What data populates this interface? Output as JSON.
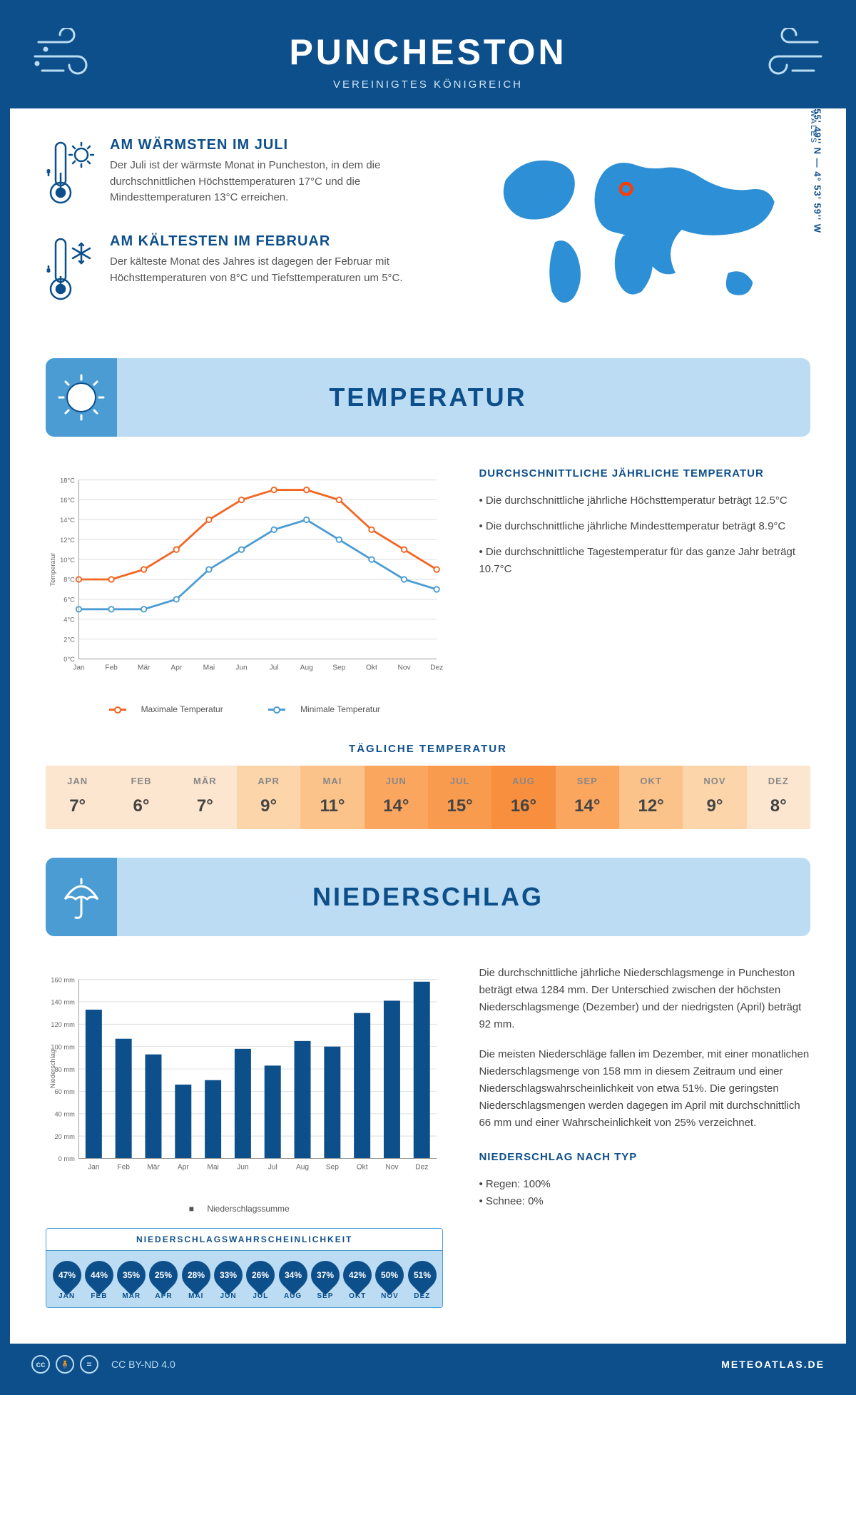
{
  "header": {
    "title": "PUNCHESTON",
    "subtitle": "VEREINIGTES KÖNIGREICH"
  },
  "location": {
    "coords": "51° 55' 49'' N — 4° 53' 59'' W",
    "region": "WALES",
    "marker": {
      "cx_pct": 47,
      "cy_pct": 28,
      "color": "#ff3b00"
    }
  },
  "colors": {
    "primary": "#0d4f8b",
    "accent": "#4b9cd3",
    "light": "#bbdcf2",
    "orange": "#f26522",
    "blue_series": "#4b9cd3",
    "grid": "#dddddd",
    "text_body": "#444444"
  },
  "facts": {
    "warm": {
      "title": "AM WÄRMSTEN IM JULI",
      "text": "Der Juli ist der wärmste Monat in Puncheston, in dem die durchschnittlichen Höchsttemperaturen 17°C und die Mindesttemperaturen 13°C erreichen."
    },
    "cold": {
      "title": "AM KÄLTESTEN IM FEBRUAR",
      "text": "Der kälteste Monat des Jahres ist dagegen der Februar mit Höchsttemperaturen von 8°C und Tiefsttemperaturen um 5°C."
    }
  },
  "temperature": {
    "section_title": "TEMPERATUR",
    "chart": {
      "type": "line",
      "months": [
        "Jan",
        "Feb",
        "Mär",
        "Apr",
        "Mai",
        "Jun",
        "Jul",
        "Aug",
        "Sep",
        "Okt",
        "Nov",
        "Dez"
      ],
      "max_series": [
        8,
        8,
        9,
        11,
        14,
        16,
        17,
        17,
        16,
        13,
        11,
        9
      ],
      "min_series": [
        5,
        5,
        5,
        6,
        9,
        11,
        13,
        14,
        12,
        10,
        8,
        7
      ],
      "ylim": [
        0,
        18
      ],
      "ytick_step": 2,
      "y_unit": "°C",
      "ylabel": "Temperatur",
      "max_color": "#f26522",
      "min_color": "#4b9cd3",
      "line_width": 3,
      "marker": "circle",
      "legend_max": "Maximale Temperatur",
      "legend_min": "Minimale Temperatur",
      "background": "#ffffff",
      "grid_color": "#dddddd"
    },
    "avg_title": "DURCHSCHNITTLICHE JÄHRLICHE TEMPERATUR",
    "bullets": [
      "• Die durchschnittliche jährliche Höchsttemperatur beträgt 12.5°C",
      "• Die durchschnittliche jährliche Mindesttemperatur beträgt 8.9°C",
      "• Die durchschnittliche Tagestemperatur für das ganze Jahr beträgt 10.7°C"
    ],
    "daily_title": "TÄGLICHE TEMPERATUR",
    "daily": {
      "months": [
        "JAN",
        "FEB",
        "MÄR",
        "APR",
        "MAI",
        "JUN",
        "JUL",
        "AUG",
        "SEP",
        "OKT",
        "NOV",
        "DEZ"
      ],
      "values": [
        "7°",
        "6°",
        "7°",
        "9°",
        "11°",
        "14°",
        "15°",
        "16°",
        "14°",
        "12°",
        "9°",
        "8°"
      ],
      "colors": [
        "#fde6cf",
        "#fde6cf",
        "#fde6cf",
        "#fcd5ab",
        "#fbc38a",
        "#faa65f",
        "#f99b4f",
        "#f88f3f",
        "#faa65f",
        "#fbc38a",
        "#fcd5ab",
        "#fde6cf"
      ]
    }
  },
  "precip": {
    "section_title": "NIEDERSCHLAG",
    "chart": {
      "type": "bar",
      "months": [
        "Jan",
        "Feb",
        "Mär",
        "Apr",
        "Mai",
        "Jun",
        "Jul",
        "Aug",
        "Sep",
        "Okt",
        "Nov",
        "Dez"
      ],
      "values": [
        133,
        107,
        93,
        66,
        70,
        98,
        83,
        105,
        100,
        130,
        141,
        158
      ],
      "ylim": [
        0,
        160
      ],
      "ytick_step": 20,
      "y_unit": " mm",
      "ylabel": "Niederschlag",
      "bar_color": "#0d4f8b",
      "bar_width": 0.55,
      "legend": "Niederschlagssumme",
      "grid_color": "#dddddd"
    },
    "paragraph1": "Die durchschnittliche jährliche Niederschlagsmenge in Puncheston beträgt etwa 1284 mm. Der Unterschied zwischen der höchsten Niederschlagsmenge (Dezember) und der niedrigsten (April) beträgt 92 mm.",
    "paragraph2": "Die meisten Niederschläge fallen im Dezember, mit einer monatlichen Niederschlagsmenge von 158 mm in diesem Zeitraum und einer Niederschlagswahrscheinlichkeit von etwa 51%. Die geringsten Niederschlagsmengen werden dagegen im April mit durchschnittlich 66 mm und einer Wahrscheinlichkeit von 25% verzeichnet.",
    "type_title": "NIEDERSCHLAG NACH TYP",
    "type_lines": [
      "• Regen: 100%",
      "• Schnee: 0%"
    ],
    "prob_title": "NIEDERSCHLAGSWAHRSCHEINLICHKEIT",
    "probability": {
      "months": [
        "JAN",
        "FEB",
        "MÄR",
        "APR",
        "MAI",
        "JUN",
        "JUL",
        "AUG",
        "SEP",
        "OKT",
        "NOV",
        "DEZ"
      ],
      "values": [
        "47%",
        "44%",
        "35%",
        "25%",
        "28%",
        "33%",
        "26%",
        "34%",
        "37%",
        "42%",
        "50%",
        "51%"
      ]
    }
  },
  "footer": {
    "license": "CC BY-ND 4.0",
    "brand": "METEOATLAS.DE"
  }
}
